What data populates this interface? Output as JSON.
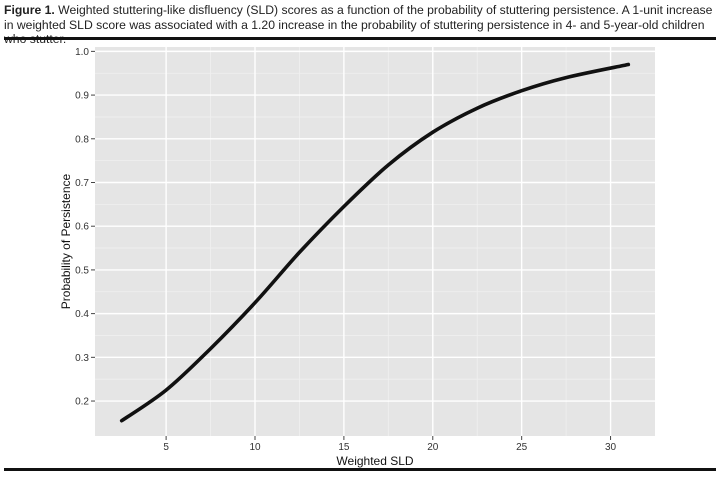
{
  "caption": {
    "label": "Figure 1.",
    "text": " Weighted stuttering-like disfluency (SLD) scores as a function of the probability of stuttering persistence. A 1-unit increase in weighted SLD score was associated with a 1.20 increase in the probability of stuttering persistence in 4- and 5-year-old children who stutter."
  },
  "colors": {
    "panel": "#e5e5e5",
    "grid_major": "#ffffff",
    "grid_minor": "#f0f0f0",
    "line": "#111111"
  },
  "chart_data": {
    "type": "line",
    "title": "",
    "xlabel": "Weighted SLD",
    "ylabel": "Probability of Persistence",
    "xlim": [
      1.0,
      32.5
    ],
    "ylim": [
      0.12,
      1.01
    ],
    "x_ticks": [
      5,
      10,
      15,
      20,
      25,
      30
    ],
    "y_ticks": [
      0.2,
      0.3,
      0.4,
      0.5,
      0.6,
      0.7,
      0.8,
      0.9,
      1.0
    ],
    "x_tick_labels": [
      "5",
      "10",
      "15",
      "20",
      "25",
      "30"
    ],
    "y_tick_labels": [
      "0.2",
      "0.3",
      "0.4",
      "0.5",
      "0.6",
      "0.7",
      "0.8",
      "0.9",
      "1.0"
    ],
    "grid": true,
    "series": [
      {
        "x": [
          2.5,
          5,
          7.5,
          10,
          12.5,
          15,
          17.5,
          20,
          22.5,
          25,
          27.5,
          31
        ],
        "y": [
          0.155,
          0.225,
          0.32,
          0.425,
          0.54,
          0.645,
          0.74,
          0.815,
          0.87,
          0.91,
          0.94,
          0.97
        ]
      }
    ]
  }
}
